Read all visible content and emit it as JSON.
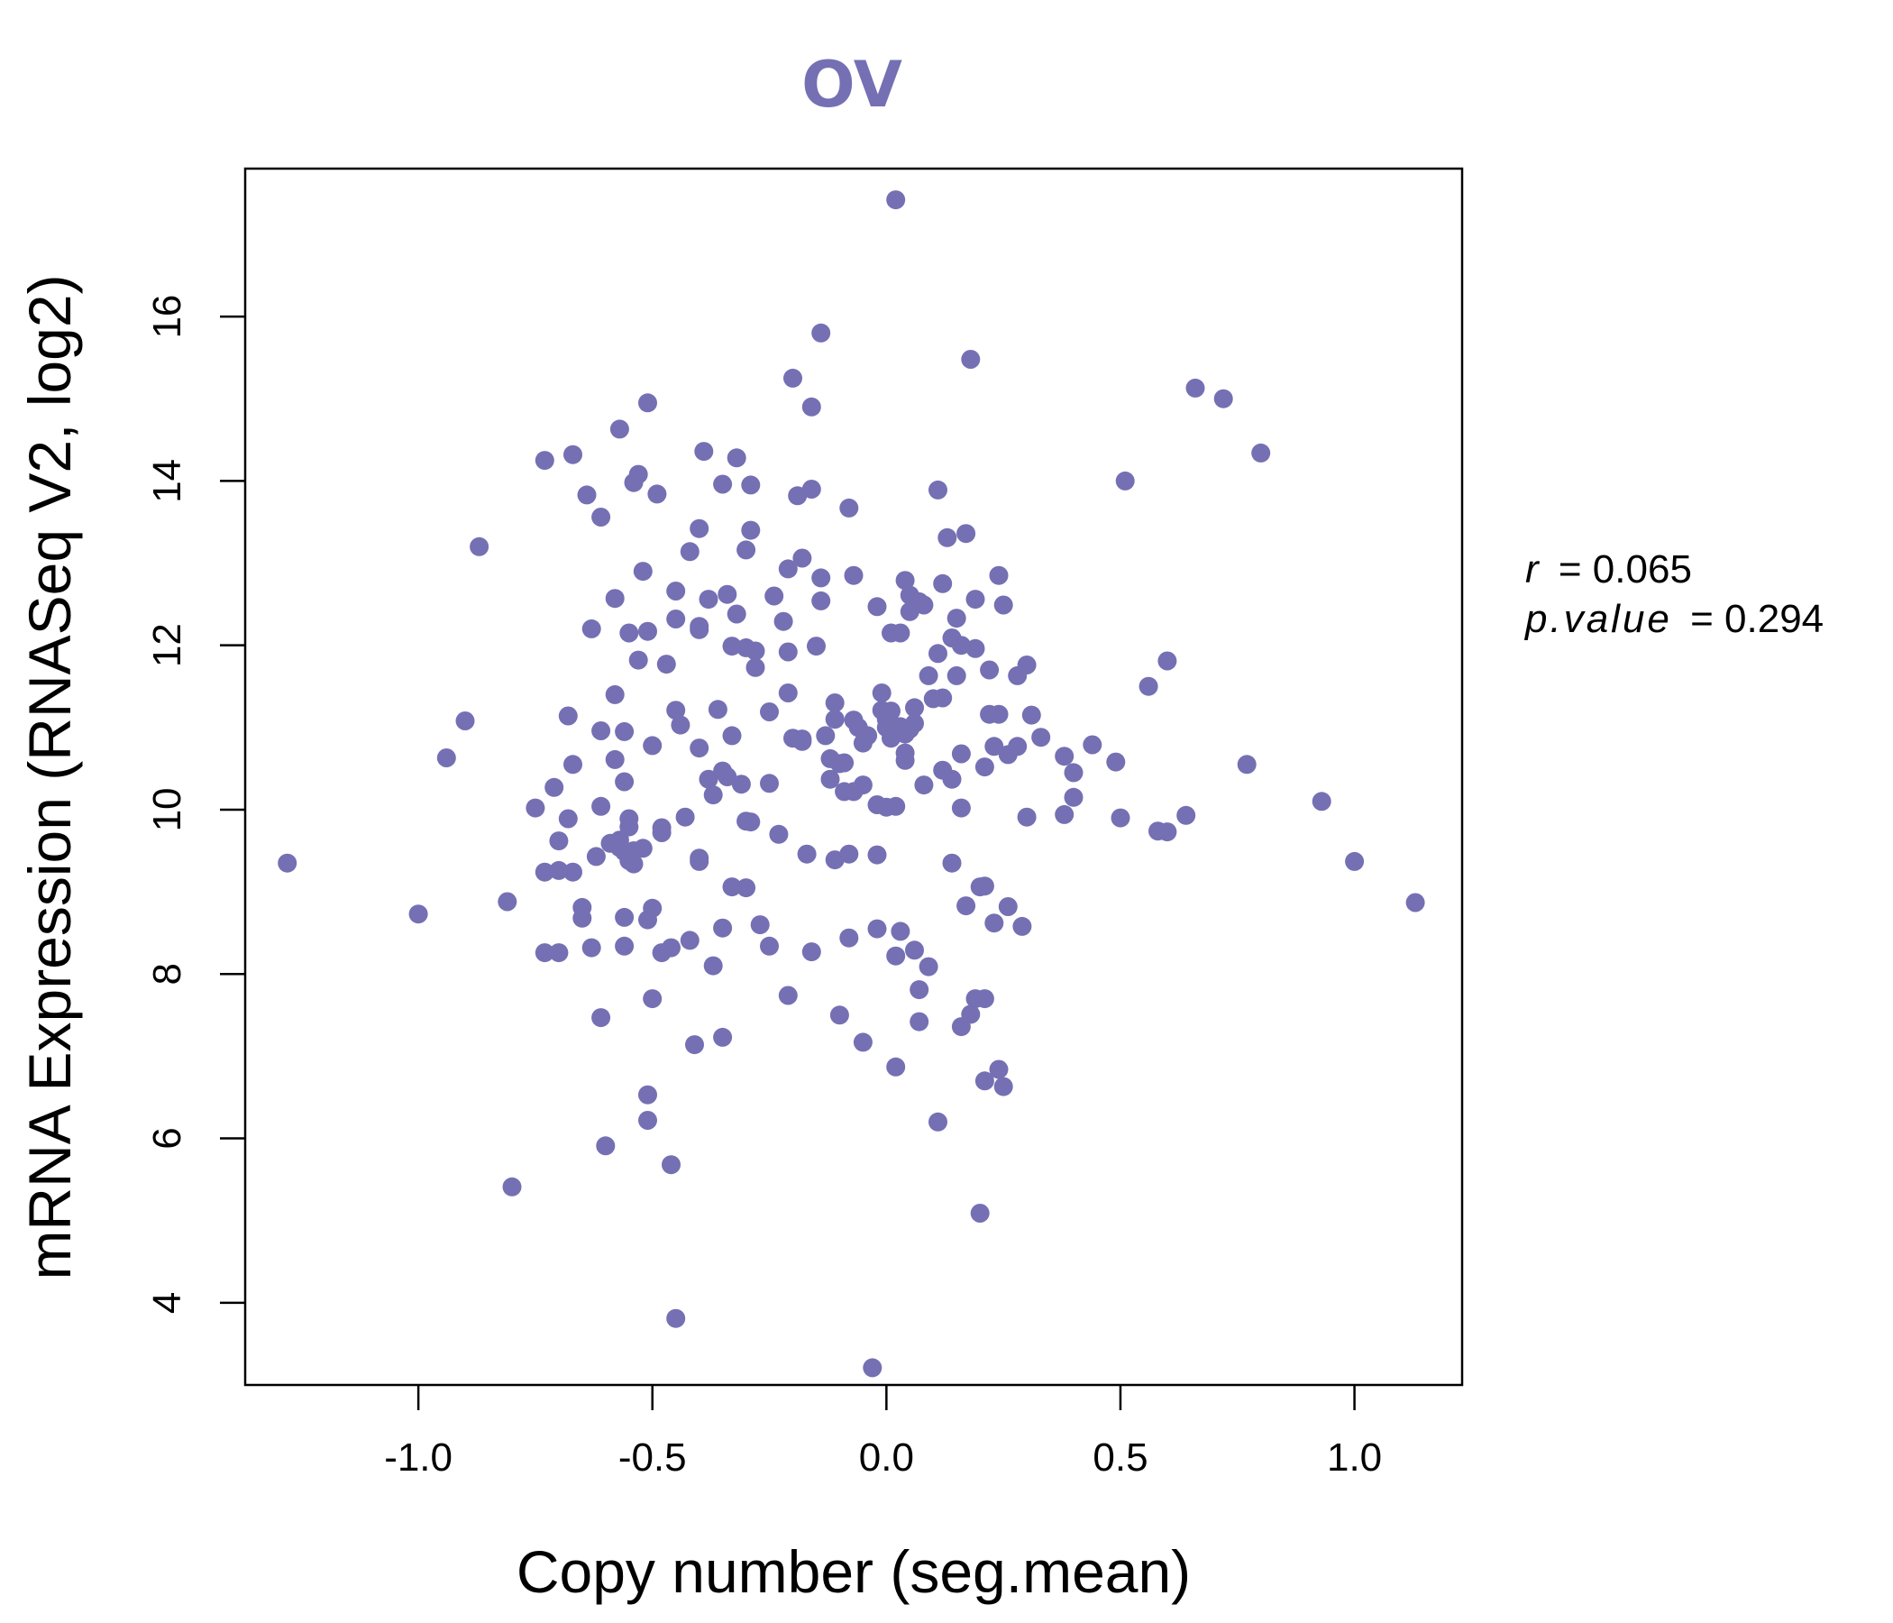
{
  "chart_data": {
    "type": "scatter",
    "title": "OV",
    "xlabel": "Copy number (seg.mean)",
    "ylabel": "mRNA Expression (RNASeq V2, log2)",
    "xlim": [
      -1.37,
      1.23
    ],
    "ylim": [
      3.0,
      17.8
    ],
    "xticks": [
      -1.0,
      -0.5,
      0.0,
      0.5,
      1.0
    ],
    "xtick_labels": [
      "-1.0",
      "-0.5",
      "0.0",
      "0.5",
      "1.0"
    ],
    "yticks": [
      4,
      6,
      8,
      10,
      12,
      14,
      16
    ],
    "ytick_labels": [
      "4",
      "6",
      "8",
      "10",
      "12",
      "14",
      "16"
    ],
    "grid": false,
    "point_color": "#7570B3",
    "annotations": {
      "r_label": "r",
      "r_value": "= 0.065",
      "p_label": "p.value",
      "p_value": "= 0.294"
    },
    "points": [
      [
        -1.28,
        9.35
      ],
      [
        -1.0,
        8.73
      ],
      [
        -0.94,
        10.63
      ],
      [
        -0.9,
        11.08
      ],
      [
        -0.87,
        13.2
      ],
      [
        -0.81,
        8.88
      ],
      [
        -0.8,
        5.41
      ],
      [
        -0.75,
        10.02
      ],
      [
        -0.73,
        8.26
      ],
      [
        -0.73,
        9.24
      ],
      [
        -0.73,
        14.25
      ],
      [
        -0.71,
        10.27
      ],
      [
        -0.7,
        9.62
      ],
      [
        -0.7,
        8.26
      ],
      [
        -0.7,
        9.26
      ],
      [
        -0.68,
        9.89
      ],
      [
        -0.68,
        11.14
      ],
      [
        -0.67,
        10.55
      ],
      [
        -0.67,
        14.32
      ],
      [
        -0.67,
        9.24
      ],
      [
        -0.65,
        8.68
      ],
      [
        -0.65,
        8.81
      ],
      [
        -0.64,
        13.83
      ],
      [
        -0.63,
        8.32
      ],
      [
        -0.63,
        12.2
      ],
      [
        -0.62,
        9.43
      ],
      [
        -0.61,
        7.47
      ],
      [
        -0.61,
        10.04
      ],
      [
        -0.61,
        10.96
      ],
      [
        -0.61,
        13.56
      ],
      [
        -0.6,
        5.91
      ],
      [
        -0.59,
        9.59
      ],
      [
        -0.58,
        10.61
      ],
      [
        -0.58,
        11.4
      ],
      [
        -0.58,
        12.57
      ],
      [
        -0.57,
        9.63
      ],
      [
        -0.57,
        9.54
      ],
      [
        -0.57,
        14.63
      ],
      [
        -0.56,
        8.34
      ],
      [
        -0.56,
        8.69
      ],
      [
        -0.56,
        9.49
      ],
      [
        -0.56,
        10.34
      ],
      [
        -0.56,
        10.95
      ],
      [
        -0.55,
        9.38
      ],
      [
        -0.55,
        9.79
      ],
      [
        -0.55,
        9.89
      ],
      [
        -0.55,
        12.15
      ],
      [
        -0.54,
        9.34
      ],
      [
        -0.54,
        9.5
      ],
      [
        -0.54,
        13.98
      ],
      [
        -0.53,
        11.82
      ],
      [
        -0.53,
        14.08
      ],
      [
        -0.52,
        12.9
      ],
      [
        -0.52,
        9.53
      ],
      [
        -0.51,
        12.17
      ],
      [
        -0.51,
        14.95
      ],
      [
        -0.51,
        6.53
      ],
      [
        -0.51,
        6.22
      ],
      [
        -0.51,
        8.66
      ],
      [
        -0.5,
        8.8
      ],
      [
        -0.5,
        7.7
      ],
      [
        -0.5,
        10.78
      ],
      [
        -0.49,
        13.84
      ],
      [
        -0.48,
        9.72
      ],
      [
        -0.48,
        9.78
      ],
      [
        -0.48,
        8.26
      ],
      [
        -0.47,
        11.77
      ],
      [
        -0.46,
        8.32
      ],
      [
        -0.46,
        5.68
      ],
      [
        -0.45,
        3.81
      ],
      [
        -0.45,
        11.21
      ],
      [
        -0.45,
        12.32
      ],
      [
        -0.45,
        12.66
      ],
      [
        -0.44,
        11.03
      ],
      [
        -0.43,
        9.91
      ],
      [
        -0.42,
        8.41
      ],
      [
        -0.42,
        13.14
      ],
      [
        -0.41,
        7.14
      ],
      [
        -0.4,
        9.37
      ],
      [
        -0.4,
        9.41
      ],
      [
        -0.4,
        10.75
      ],
      [
        -0.4,
        12.19
      ],
      [
        -0.4,
        12.23
      ],
      [
        -0.4,
        13.42
      ],
      [
        -0.39,
        14.36
      ],
      [
        -0.38,
        10.37
      ],
      [
        -0.38,
        12.56
      ],
      [
        -0.37,
        8.1
      ],
      [
        -0.37,
        10.18
      ],
      [
        -0.36,
        11.22
      ],
      [
        -0.35,
        8.56
      ],
      [
        -0.35,
        7.23
      ],
      [
        -0.35,
        10.47
      ],
      [
        -0.35,
        13.96
      ],
      [
        -0.34,
        10.4
      ],
      [
        -0.34,
        12.62
      ],
      [
        -0.33,
        9.06
      ],
      [
        -0.33,
        10.9
      ],
      [
        -0.33,
        11.99
      ],
      [
        -0.32,
        12.38
      ],
      [
        -0.32,
        14.28
      ],
      [
        -0.31,
        10.31
      ],
      [
        -0.3,
        9.05
      ],
      [
        -0.3,
        9.86
      ],
      [
        -0.3,
        11.97
      ],
      [
        -0.3,
        13.16
      ],
      [
        -0.29,
        13.4
      ],
      [
        -0.29,
        13.95
      ],
      [
        -0.29,
        9.85
      ],
      [
        -0.28,
        11.93
      ],
      [
        -0.28,
        11.73
      ],
      [
        -0.27,
        8.6
      ],
      [
        -0.25,
        8.34
      ],
      [
        -0.25,
        10.32
      ],
      [
        -0.25,
        11.19
      ],
      [
        -0.24,
        12.6
      ],
      [
        -0.23,
        9.7
      ],
      [
        -0.22,
        12.29
      ],
      [
        -0.21,
        7.74
      ],
      [
        -0.21,
        11.42
      ],
      [
        -0.21,
        11.92
      ],
      [
        -0.21,
        12.93
      ],
      [
        -0.2,
        15.25
      ],
      [
        -0.2,
        10.87
      ],
      [
        -0.19,
        13.82
      ],
      [
        -0.18,
        10.83
      ],
      [
        -0.18,
        10.86
      ],
      [
        -0.18,
        13.06
      ],
      [
        -0.17,
        9.46
      ],
      [
        -0.16,
        14.9
      ],
      [
        -0.16,
        8.27
      ],
      [
        -0.16,
        13.9
      ],
      [
        -0.15,
        11.99
      ],
      [
        -0.14,
        15.8
      ],
      [
        -0.14,
        12.54
      ],
      [
        -0.14,
        12.82
      ],
      [
        -0.13,
        10.9
      ],
      [
        -0.12,
        10.37
      ],
      [
        -0.12,
        10.62
      ],
      [
        -0.11,
        11.3
      ],
      [
        -0.11,
        9.39
      ],
      [
        -0.11,
        11.1
      ],
      [
        -0.1,
        7.5
      ],
      [
        -0.1,
        10.56
      ],
      [
        -0.09,
        10.22
      ],
      [
        -0.09,
        10.57
      ],
      [
        -0.08,
        9.46
      ],
      [
        -0.08,
        8.44
      ],
      [
        -0.08,
        13.67
      ],
      [
        -0.07,
        10.22
      ],
      [
        -0.07,
        11.09
      ],
      [
        -0.07,
        12.85
      ],
      [
        -0.06,
        11.0
      ],
      [
        -0.05,
        10.81
      ],
      [
        -0.05,
        10.3
      ],
      [
        -0.05,
        7.17
      ],
      [
        -0.04,
        10.9
      ],
      [
        -0.03,
        3.21
      ],
      [
        -0.02,
        12.47
      ],
      [
        -0.02,
        9.45
      ],
      [
        -0.02,
        8.55
      ],
      [
        -0.02,
        10.06
      ],
      [
        -0.01,
        11.21
      ],
      [
        -0.01,
        11.42
      ],
      [
        0.0,
        11.1
      ],
      [
        0.0,
        11.0
      ],
      [
        0.0,
        10.03
      ],
      [
        0.01,
        11.2
      ],
      [
        0.01,
        10.87
      ],
      [
        0.01,
        12.15
      ],
      [
        0.02,
        10.04
      ],
      [
        0.02,
        17.42
      ],
      [
        0.02,
        8.22
      ],
      [
        0.02,
        6.87
      ],
      [
        0.03,
        12.15
      ],
      [
        0.03,
        8.52
      ],
      [
        0.03,
        11.01
      ],
      [
        0.04,
        10.92
      ],
      [
        0.04,
        12.79
      ],
      [
        0.04,
        10.69
      ],
      [
        0.04,
        10.6
      ],
      [
        0.05,
        10.98
      ],
      [
        0.05,
        12.41
      ],
      [
        0.05,
        12.61
      ],
      [
        0.06,
        11.24
      ],
      [
        0.06,
        11.05
      ],
      [
        0.06,
        8.29
      ],
      [
        0.07,
        12.53
      ],
      [
        0.07,
        7.81
      ],
      [
        0.07,
        7.42
      ],
      [
        0.08,
        12.49
      ],
      [
        0.08,
        10.3
      ],
      [
        0.09,
        11.63
      ],
      [
        0.09,
        8.09
      ],
      [
        0.1,
        11.35
      ],
      [
        0.11,
        13.89
      ],
      [
        0.11,
        11.9
      ],
      [
        0.11,
        6.2
      ],
      [
        0.12,
        11.36
      ],
      [
        0.12,
        12.75
      ],
      [
        0.12,
        10.48
      ],
      [
        0.13,
        13.31
      ],
      [
        0.14,
        10.37
      ],
      [
        0.14,
        12.09
      ],
      [
        0.14,
        9.35
      ],
      [
        0.15,
        12.33
      ],
      [
        0.15,
        11.63
      ],
      [
        0.16,
        12.0
      ],
      [
        0.16,
        10.68
      ],
      [
        0.16,
        10.02
      ],
      [
        0.16,
        7.36
      ],
      [
        0.17,
        13.36
      ],
      [
        0.17,
        8.83
      ],
      [
        0.18,
        7.51
      ],
      [
        0.18,
        15.48
      ],
      [
        0.19,
        11.96
      ],
      [
        0.19,
        7.7
      ],
      [
        0.19,
        12.56
      ],
      [
        0.2,
        9.06
      ],
      [
        0.2,
        5.09
      ],
      [
        0.21,
        6.7
      ],
      [
        0.21,
        9.07
      ],
      [
        0.21,
        7.7
      ],
      [
        0.21,
        10.52
      ],
      [
        0.22,
        11.7
      ],
      [
        0.22,
        11.16
      ],
      [
        0.23,
        10.77
      ],
      [
        0.23,
        8.62
      ],
      [
        0.24,
        11.16
      ],
      [
        0.24,
        12.85
      ],
      [
        0.24,
        6.84
      ],
      [
        0.25,
        12.49
      ],
      [
        0.25,
        6.63
      ],
      [
        0.26,
        10.67
      ],
      [
        0.26,
        8.82
      ],
      [
        0.28,
        10.77
      ],
      [
        0.28,
        11.63
      ],
      [
        0.29,
        8.58
      ],
      [
        0.3,
        11.76
      ],
      [
        0.3,
        9.91
      ],
      [
        0.31,
        11.15
      ],
      [
        0.33,
        10.88
      ],
      [
        0.38,
        10.65
      ],
      [
        0.38,
        9.94
      ],
      [
        0.4,
        10.45
      ],
      [
        0.4,
        10.15
      ],
      [
        0.44,
        10.79
      ],
      [
        0.49,
        10.58
      ],
      [
        0.5,
        9.9
      ],
      [
        0.51,
        14.0
      ],
      [
        0.56,
        11.5
      ],
      [
        0.58,
        9.74
      ],
      [
        0.6,
        11.81
      ],
      [
        0.6,
        9.73
      ],
      [
        0.64,
        9.93
      ],
      [
        0.66,
        15.13
      ],
      [
        0.72,
        15.0
      ],
      [
        0.77,
        10.55
      ],
      [
        0.8,
        14.34
      ],
      [
        0.93,
        10.1
      ],
      [
        1.0,
        9.37
      ],
      [
        1.13,
        8.87
      ]
    ]
  }
}
